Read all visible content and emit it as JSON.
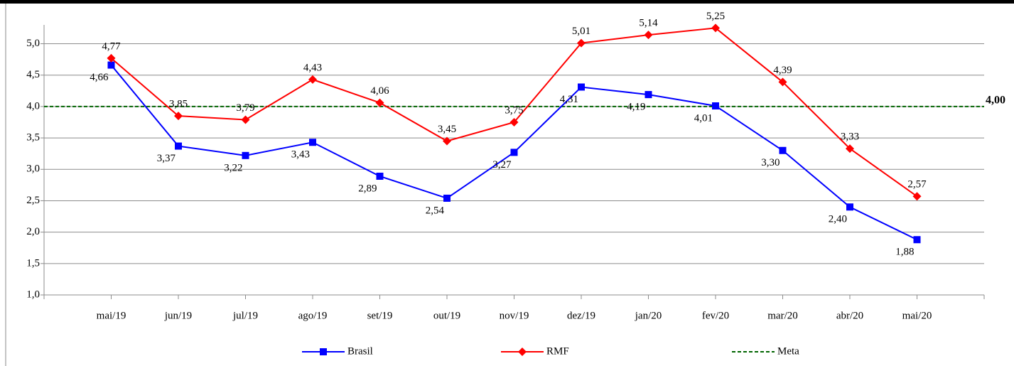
{
  "chart_data": {
    "type": "line",
    "categories": [
      "mai/19",
      "jun/19",
      "jul/19",
      "ago/19",
      "set/19",
      "out/19",
      "nov/19",
      "dez/19",
      "jan/20",
      "fev/20",
      "mar/20",
      "abr/20",
      "mai/20"
    ],
    "series": [
      {
        "name": "Brasil",
        "color": "#0000ff",
        "marker": "square",
        "values": [
          4.66,
          3.37,
          3.22,
          3.43,
          2.89,
          2.54,
          3.27,
          4.31,
          4.19,
          4.01,
          3.3,
          2.4,
          1.88
        ],
        "value_labels": [
          "4,66",
          "3,37",
          "3,22",
          "3,43",
          "2,89",
          "2,54",
          "3,27",
          "4,31",
          "4,19",
          "4,01",
          "3,30",
          "2,40",
          "1,88"
        ]
      },
      {
        "name": "RMF",
        "color": "#ff0000",
        "marker": "diamond",
        "values": [
          4.77,
          3.85,
          3.79,
          4.43,
          4.06,
          3.45,
          3.75,
          5.01,
          5.14,
          5.25,
          4.39,
          3.33,
          2.57
        ],
        "value_labels": [
          "4,77",
          "3,85",
          "3,79",
          "4,43",
          "4,06",
          "3,45",
          "3,75",
          "5,01",
          "5,14",
          "5,25",
          "4,39",
          "3,33",
          "2,57"
        ]
      }
    ],
    "reference_line": {
      "name": "Meta",
      "value": 4,
      "value_label": "4,00",
      "color": "#006400"
    },
    "ylim": [
      1,
      5.3
    ],
    "yticks": [
      {
        "value": 1,
        "label": "1,0"
      },
      {
        "value": 1.5,
        "label": "1,5"
      },
      {
        "value": 2,
        "label": "2,0"
      },
      {
        "value": 2.5,
        "label": "2,5"
      },
      {
        "value": 3,
        "label": "3,0"
      },
      {
        "value": 3.5,
        "label": "3,5"
      },
      {
        "value": 4,
        "label": "4,0"
      },
      {
        "value": 4.5,
        "label": "4,5"
      },
      {
        "value": 5,
        "label": "5,0"
      }
    ],
    "grid": true,
    "legend": "bottom"
  }
}
